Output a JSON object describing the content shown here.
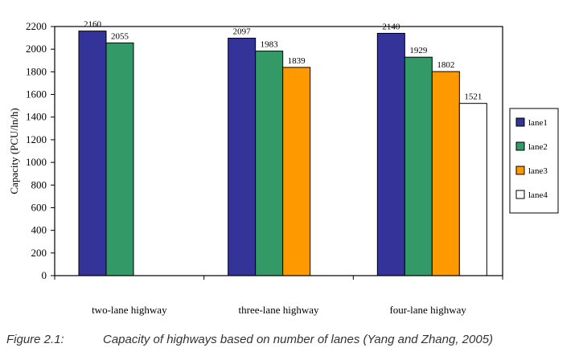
{
  "chart_data": {
    "type": "bar",
    "categories": [
      "two-lane highway",
      "three-lane highway",
      "four-lane highway"
    ],
    "series": [
      {
        "name": "lane1",
        "color": "#333399",
        "values": [
          2160,
          2097,
          2140
        ]
      },
      {
        "name": "lane2",
        "color": "#339966",
        "values": [
          2055,
          1983,
          1929
        ]
      },
      {
        "name": "lane3",
        "color": "#ff9900",
        "values": [
          null,
          1839,
          1802
        ]
      },
      {
        "name": "lane4",
        "color": "#ffffff",
        "values": [
          null,
          null,
          1521
        ]
      }
    ],
    "ylabel": "Capacity  (PCU/ln/h)",
    "ylim": [
      0,
      2200
    ],
    "yticks": [
      0,
      200,
      400,
      600,
      800,
      1000,
      1200,
      1400,
      1600,
      1800,
      2000,
      2200
    ],
    "grid": false,
    "legend": "right"
  },
  "caption": {
    "number": "Figure 2.1:",
    "text": "Capacity of highways based on number of lanes (Yang and Zhang, 2005)"
  }
}
